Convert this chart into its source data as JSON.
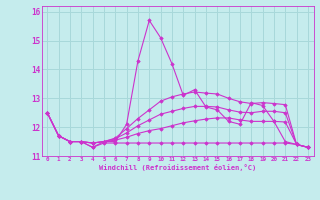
{
  "xlabel": "Windchill (Refroidissement éolien,°C)",
  "background_color": "#c5eced",
  "grid_color": "#a8d8da",
  "line_color": "#cc33cc",
  "xlim": [
    -0.5,
    23.5
  ],
  "ylim": [
    11.0,
    16.2
  ],
  "yticks": [
    11,
    12,
    13,
    14,
    15,
    16
  ],
  "xticks": [
    0,
    1,
    2,
    3,
    4,
    5,
    6,
    7,
    8,
    9,
    10,
    11,
    12,
    13,
    14,
    15,
    16,
    17,
    18,
    19,
    20,
    21,
    22,
    23
  ],
  "series": [
    [
      12.5,
      11.7,
      11.5,
      11.5,
      11.3,
      11.5,
      11.5,
      12.1,
      14.3,
      15.7,
      15.1,
      14.2,
      13.1,
      13.3,
      12.7,
      12.6,
      12.2,
      12.1,
      12.85,
      12.75,
      12.2,
      11.5,
      11.4,
      11.3
    ],
    [
      12.5,
      11.7,
      11.5,
      11.5,
      11.3,
      11.45,
      11.45,
      11.45,
      11.45,
      11.45,
      11.45,
      11.45,
      11.45,
      11.45,
      11.45,
      11.45,
      11.45,
      11.45,
      11.45,
      11.45,
      11.45,
      11.45,
      11.4,
      11.3
    ],
    [
      12.5,
      11.7,
      11.5,
      11.5,
      11.45,
      11.5,
      11.55,
      11.65,
      11.78,
      11.88,
      11.95,
      12.05,
      12.15,
      12.22,
      12.28,
      12.32,
      12.32,
      12.25,
      12.2,
      12.2,
      12.2,
      12.18,
      11.4,
      11.3
    ],
    [
      12.5,
      11.7,
      11.5,
      11.5,
      11.45,
      11.5,
      11.6,
      11.8,
      12.05,
      12.25,
      12.45,
      12.55,
      12.65,
      12.72,
      12.72,
      12.7,
      12.6,
      12.52,
      12.5,
      12.55,
      12.55,
      12.5,
      11.4,
      11.3
    ],
    [
      12.5,
      11.7,
      11.5,
      11.5,
      11.45,
      11.5,
      11.62,
      11.95,
      12.3,
      12.6,
      12.9,
      13.05,
      13.15,
      13.22,
      13.18,
      13.15,
      13.0,
      12.88,
      12.82,
      12.85,
      12.82,
      12.78,
      11.4,
      11.3
    ]
  ]
}
